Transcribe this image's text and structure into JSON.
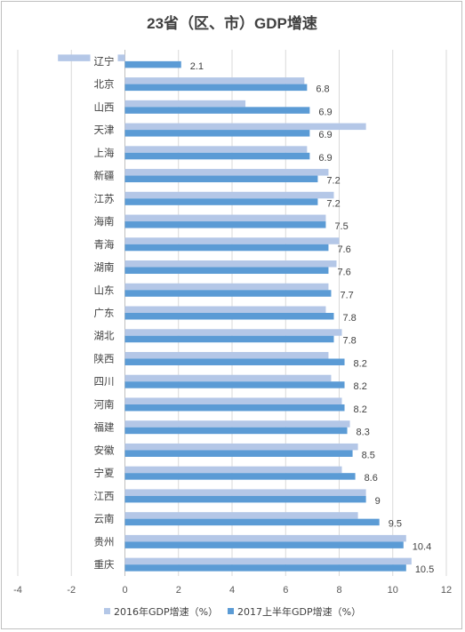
{
  "chart_data": {
    "type": "bar",
    "orientation": "horizontal",
    "title": "23省（区、市）GDP增速",
    "categories": [
      "辽宁",
      "北京",
      "山西",
      "天津",
      "上海",
      "新疆",
      "江苏",
      "海南",
      "青海",
      "湖南",
      "山东",
      "广东",
      "湖北",
      "陕西",
      "四川",
      "河南",
      "福建",
      "安徽",
      "宁夏",
      "江西",
      "云南",
      "贵州",
      "重庆"
    ],
    "series": [
      {
        "name": "2016年GDP增速（%）",
        "color": "#b4c7e7",
        "values": [
          -2.5,
          6.7,
          4.5,
          9.0,
          6.8,
          7.6,
          7.8,
          7.5,
          8.0,
          7.9,
          7.6,
          7.5,
          8.1,
          7.6,
          7.7,
          8.1,
          8.4,
          8.7,
          8.1,
          9.0,
          8.7,
          10.5,
          10.7
        ]
      },
      {
        "name": "2017上半年GDP增速（%）",
        "color": "#5b9bd5",
        "values": [
          2.1,
          6.8,
          6.9,
          6.9,
          6.9,
          7.2,
          7.2,
          7.5,
          7.6,
          7.6,
          7.7,
          7.8,
          7.8,
          8.2,
          8.2,
          8.2,
          8.3,
          8.5,
          8.6,
          9.0,
          9.5,
          10.4,
          10.5
        ],
        "labels": [
          "2.1",
          "6.8",
          "6.9",
          "6.9",
          "6.9",
          "7.2",
          "7.2",
          "7.5",
          "7.6",
          "7.6",
          "7.7",
          "7.8",
          "7.8",
          "8.2",
          "8.2",
          "8.2",
          "8.3",
          "8.5",
          "8.6",
          "9",
          "9.5",
          "10.4",
          "10.5"
        ]
      }
    ],
    "xlim": [
      -4,
      12
    ],
    "xticks": [
      "-4",
      "-2",
      "0",
      "2",
      "4",
      "6",
      "8",
      "10",
      "12"
    ],
    "grid": "vertical",
    "legend_position": "bottom"
  }
}
